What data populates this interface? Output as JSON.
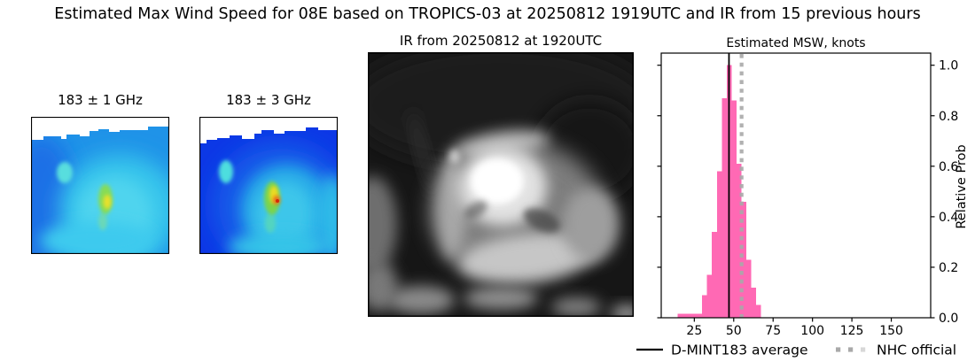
{
  "title": "Estimated Max Wind Speed for 08E based on TROPICS-03 at 20250812 1919UTC and IR from 15 previous hours",
  "panels": {
    "mw1": {
      "title": "183 ± 1 GHz",
      "kind": "microwave brightness temperature image"
    },
    "mw2": {
      "title": "183 ± 3 GHz",
      "kind": "microwave brightness temperature image"
    },
    "ir": {
      "title": "IR from 20250812 at 1920UTC",
      "kind": "grayscale infrared satellite image of tropical cyclone"
    }
  },
  "chart_data": {
    "type": "bar",
    "title": "Estimated MSW, knots",
    "ylabel": "Relative Prob",
    "xlim": [
      4,
      175
    ],
    "ylim": [
      0,
      1.048
    ],
    "xticks": [
      25,
      50,
      75,
      100,
      125,
      150
    ],
    "yticks": [
      0.0,
      0.2,
      0.4,
      0.6,
      0.8,
      1.0
    ],
    "grid": false,
    "bar_color": "#FF69B4",
    "bins": {
      "start_knots": 14.5,
      "width_knots": 3.1,
      "heights": [
        0.015,
        0.015,
        0.015,
        0.015,
        0.015,
        0.09,
        0.17,
        0.34,
        0.58,
        0.87,
        1.0,
        0.86,
        0.61,
        0.46,
        0.23,
        0.12,
        0.05
      ]
    },
    "average_line": {
      "label": "D-MINT183 average",
      "value_knots": 47,
      "color": "#000000",
      "style": "solid"
    },
    "official_line": {
      "label": "NHC official",
      "value_knots": 55,
      "color": "#a9a9a9",
      "style": "dotted"
    },
    "legend_position": "bottom"
  }
}
